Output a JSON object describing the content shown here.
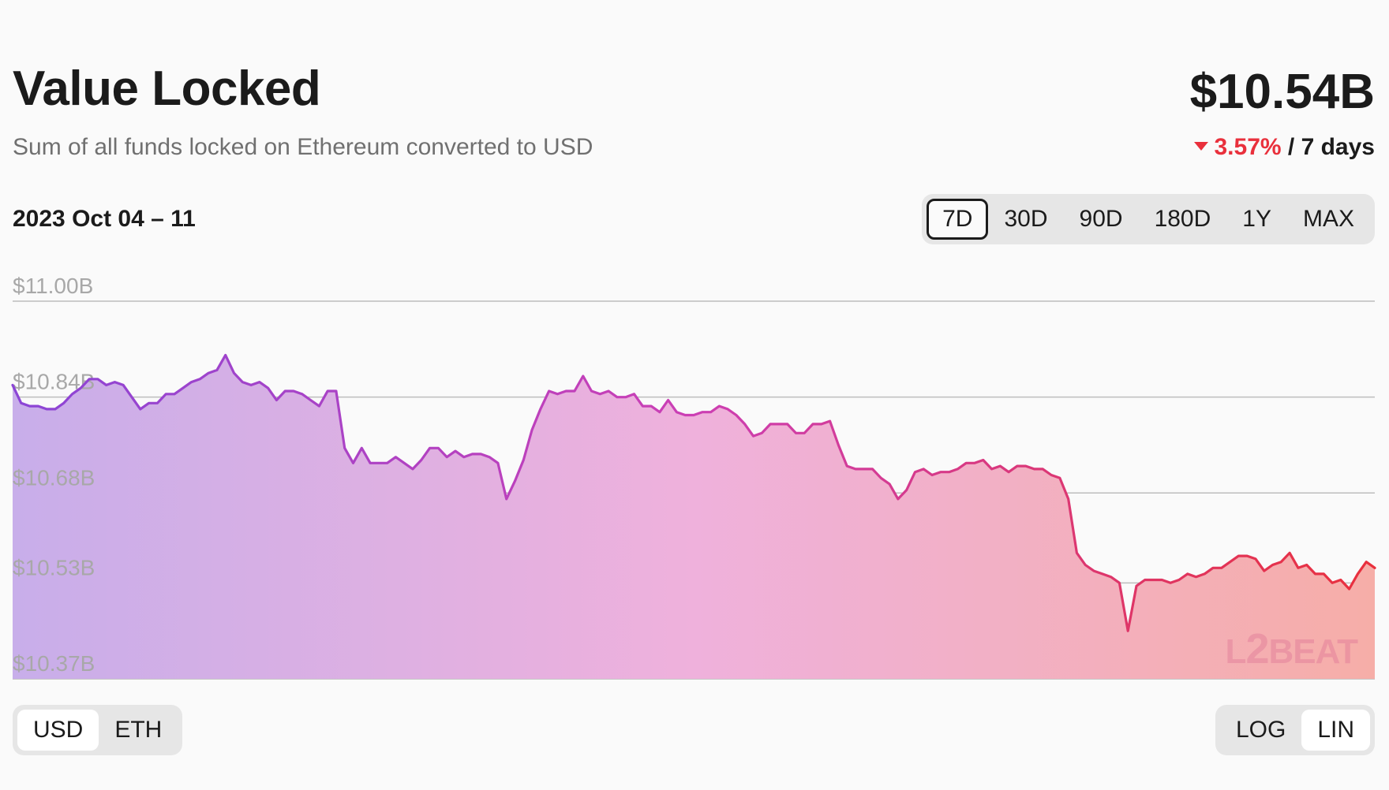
{
  "header": {
    "title": "Value Locked",
    "subtitle": "Sum of all funds locked on Ethereum converted to USD",
    "total": "$10.54B",
    "change_pct": "3.57%",
    "change_period": "/ 7 days",
    "change_direction": "down",
    "change_color": "#e9303c"
  },
  "controls": {
    "date_range": "2023 Oct 04 – 11",
    "ranges": [
      "7D",
      "30D",
      "90D",
      "180D",
      "1Y",
      "MAX"
    ],
    "active_range": "7D",
    "units": [
      "USD",
      "ETH"
    ],
    "active_unit": "USD",
    "scales": [
      "LOG",
      "LIN"
    ],
    "active_scale": "LIN"
  },
  "watermark": {
    "l": "L",
    "two": "2",
    "beat": "BEAT"
  },
  "chart_data": {
    "type": "area",
    "y_ticks": [
      "$11.00B",
      "$10.84B",
      "$10.68B",
      "$10.53B",
      "$10.37B"
    ],
    "y_tick_values": [
      11.0,
      10.84,
      10.68,
      10.53,
      10.37
    ],
    "ylim": [
      10.37,
      11.0
    ],
    "grid": true,
    "gradient_colors": [
      "#8b45d6",
      "#cc3fb4",
      "#e9303c"
    ],
    "fill_colors": [
      "#c8aeea",
      "#efb1dc",
      "#f6aea8"
    ],
    "x_range": [
      "2023 Oct 04",
      "2023 Oct 11"
    ],
    "series": [
      {
        "values": [
          10.86,
          10.83,
          10.825,
          10.825,
          10.82,
          10.82,
          10.83,
          10.845,
          10.855,
          10.87,
          10.87,
          10.86,
          10.865,
          10.86,
          10.84,
          10.82,
          10.83,
          10.83,
          10.845,
          10.845,
          10.855,
          10.865,
          10.87,
          10.88,
          10.885,
          10.91,
          10.88,
          10.865,
          10.86,
          10.865,
          10.855,
          10.835,
          10.85,
          10.85,
          10.845,
          10.835,
          10.825,
          10.85,
          10.85,
          10.755,
          10.73,
          10.755,
          10.73,
          10.73,
          10.73,
          10.74,
          10.73,
          10.72,
          10.735,
          10.755,
          10.755,
          10.74,
          10.75,
          10.74,
          10.745,
          10.745,
          10.74,
          10.73,
          10.67,
          10.7,
          10.735,
          10.785,
          10.82,
          10.85,
          10.845,
          10.85,
          10.85,
          10.875,
          10.85,
          10.845,
          10.85,
          10.84,
          10.84,
          10.845,
          10.825,
          10.825,
          10.815,
          10.835,
          10.815,
          10.81,
          10.81,
          10.815,
          10.815,
          10.825,
          10.82,
          10.81,
          10.795,
          10.775,
          10.78,
          10.795,
          10.795,
          10.795,
          10.78,
          10.78,
          10.795,
          10.795,
          10.8,
          10.76,
          10.725,
          10.72,
          10.72,
          10.72,
          10.705,
          10.695,
          10.67,
          10.685,
          10.715,
          10.72,
          10.71,
          10.715,
          10.715,
          10.72,
          10.73,
          10.73,
          10.735,
          10.72,
          10.725,
          10.715,
          10.725,
          10.725,
          10.72,
          10.72,
          10.71,
          10.705,
          10.67,
          10.58,
          10.56,
          10.55,
          10.545,
          10.54,
          10.53,
          10.45,
          10.525,
          10.535,
          10.535,
          10.535,
          10.53,
          10.535,
          10.545,
          10.54,
          10.545,
          10.555,
          10.555,
          10.565,
          10.575,
          10.575,
          10.57,
          10.55,
          10.56,
          10.565,
          10.58,
          10.555,
          10.56,
          10.545,
          10.545,
          10.53,
          10.535,
          10.52,
          10.545,
          10.565,
          10.555
        ]
      }
    ]
  }
}
